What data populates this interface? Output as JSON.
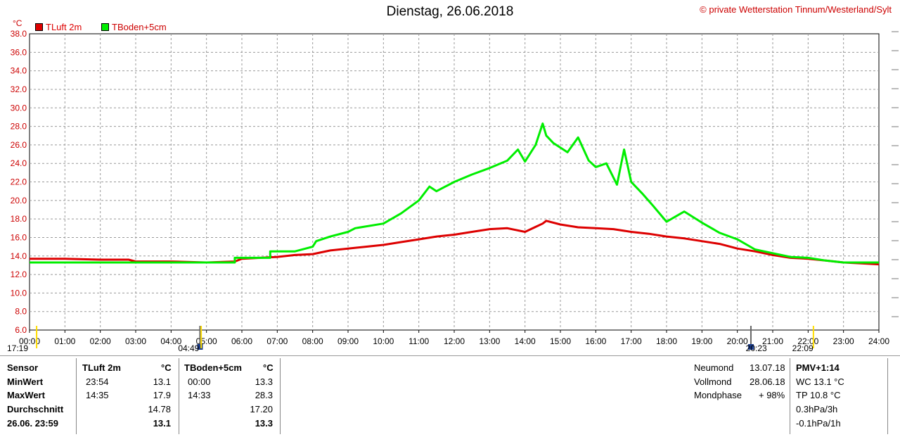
{
  "header": {
    "title": "Dienstag, 26.06.2018",
    "copyright": "© private Wetterstation Tinnum/Westerland/Sylt",
    "unit": "°C"
  },
  "legend": [
    {
      "label": "TLuft 2m",
      "color": "#dd0000"
    },
    {
      "label": "TBoden+5cm",
      "color": "#00ee00"
    }
  ],
  "events": {
    "left_time": "17:19",
    "sunrise": "04:49",
    "sunset": "20:23",
    "right_time": "22:09"
  },
  "chart_data": {
    "type": "line",
    "ylim": [
      6.0,
      38.0
    ],
    "xlim": [
      0,
      24
    ],
    "yticks": [
      "6.0",
      "8.0",
      "10.0",
      "12.0",
      "14.0",
      "16.0",
      "18.0",
      "20.0",
      "22.0",
      "24.0",
      "26.0",
      "28.0",
      "30.0",
      "32.0",
      "34.0",
      "36.0",
      "38.0"
    ],
    "xticks": [
      "00:00",
      "01:00",
      "02:00",
      "03:00",
      "04:00",
      "05:00",
      "06:00",
      "07:00",
      "08:00",
      "09:00",
      "10:00",
      "11:00",
      "12:00",
      "13:00",
      "14:00",
      "15:00",
      "16:00",
      "17:00",
      "18:00",
      "19:00",
      "20:00",
      "21:00",
      "22:00",
      "23:00",
      "24:00"
    ],
    "grid": true,
    "series": [
      {
        "name": "TLuft 2m",
        "color": "#dd0000",
        "x": [
          0,
          1,
          2,
          2.8,
          3,
          4,
          5,
          5.8,
          6,
          7,
          7.5,
          8,
          8.5,
          9,
          9.5,
          10,
          10.5,
          11,
          11.5,
          12,
          12.5,
          13,
          13.5,
          14,
          14.5,
          14.6,
          15,
          15.5,
          16,
          16.5,
          17,
          17.5,
          18,
          18.5,
          19,
          19.5,
          20,
          20.5,
          21,
          21.5,
          22,
          22.5,
          23,
          23.5,
          24
        ],
        "values": [
          13.7,
          13.7,
          13.6,
          13.6,
          13.4,
          13.4,
          13.3,
          13.4,
          13.7,
          13.9,
          14.1,
          14.2,
          14.6,
          14.8,
          15.0,
          15.2,
          15.5,
          15.8,
          16.1,
          16.3,
          16.6,
          16.9,
          17.0,
          16.6,
          17.5,
          17.8,
          17.4,
          17.1,
          17.0,
          16.9,
          16.6,
          16.4,
          16.1,
          15.9,
          15.6,
          15.3,
          14.8,
          14.5,
          14.1,
          13.8,
          13.7,
          13.5,
          13.3,
          13.2,
          13.1
        ]
      },
      {
        "name": "TBoden+5cm",
        "color": "#00ee00",
        "x": [
          0,
          1,
          2,
          3,
          4,
          5,
          5.8,
          5.8,
          6.8,
          6.8,
          7.5,
          8,
          8.1,
          8.5,
          9,
          9.2,
          10,
          10.5,
          11,
          11.3,
          11.5,
          12,
          12.5,
          13,
          13.5,
          13.8,
          14,
          14.3,
          14.5,
          14.6,
          14.8,
          15,
          15.2,
          15.5,
          15.8,
          16,
          16.3,
          16.6,
          16.8,
          17,
          17.3,
          17.6,
          18,
          18.5,
          19,
          19.5,
          20,
          20.5,
          21,
          21.5,
          22,
          22.5,
          23,
          24
        ],
        "values": [
          13.3,
          13.3,
          13.3,
          13.3,
          13.3,
          13.3,
          13.3,
          13.8,
          13.8,
          14.5,
          14.5,
          15.0,
          15.6,
          16.1,
          16.6,
          17.0,
          17.5,
          18.6,
          20.0,
          21.5,
          21.0,
          22.0,
          22.8,
          23.5,
          24.3,
          25.5,
          24.2,
          26.0,
          28.3,
          27.0,
          26.2,
          25.7,
          25.2,
          26.8,
          24.3,
          23.6,
          24.0,
          21.7,
          25.5,
          22.0,
          20.8,
          19.5,
          17.7,
          18.8,
          17.6,
          16.5,
          15.8,
          14.7,
          14.3,
          13.9,
          13.8,
          13.5,
          13.3,
          13.3
        ]
      }
    ]
  },
  "table": {
    "headers": {
      "sensor": "Sensor",
      "s1": "TLuft 2m",
      "s1_unit": "°C",
      "s2": "TBoden+5cm",
      "s2_unit": "°C"
    },
    "rows": [
      {
        "label": "MinWert",
        "s1_time": "23:54",
        "s1_val": "13.1",
        "s2_time": "00:00",
        "s2_val": "13.3"
      },
      {
        "label": "MaxWert",
        "s1_time": "14:35",
        "s1_val": "17.9",
        "s2_time": "14:33",
        "s2_val": "28.3"
      },
      {
        "label": "Durchschnitt",
        "s1_time": "",
        "s1_val": "14.78",
        "s2_time": "",
        "s2_val": "17.20"
      },
      {
        "label": "26.06. 23:59",
        "s1_time": "",
        "s1_val": "13.1",
        "s2_time": "",
        "s2_val": "13.3"
      }
    ]
  },
  "moon": [
    {
      "label": "Neumond",
      "value": "13.07.18"
    },
    {
      "label": "Vollmond",
      "value": "28.06.18"
    },
    {
      "label": "Mondphase",
      "value": "+ 98%"
    }
  ],
  "pmv": {
    "title": "PMV+1:14",
    "lines": [
      "WC 13.1 °C",
      "TP 10.8 °C",
      "0.3hPa/3h",
      "-0.1hPa/1h"
    ]
  }
}
